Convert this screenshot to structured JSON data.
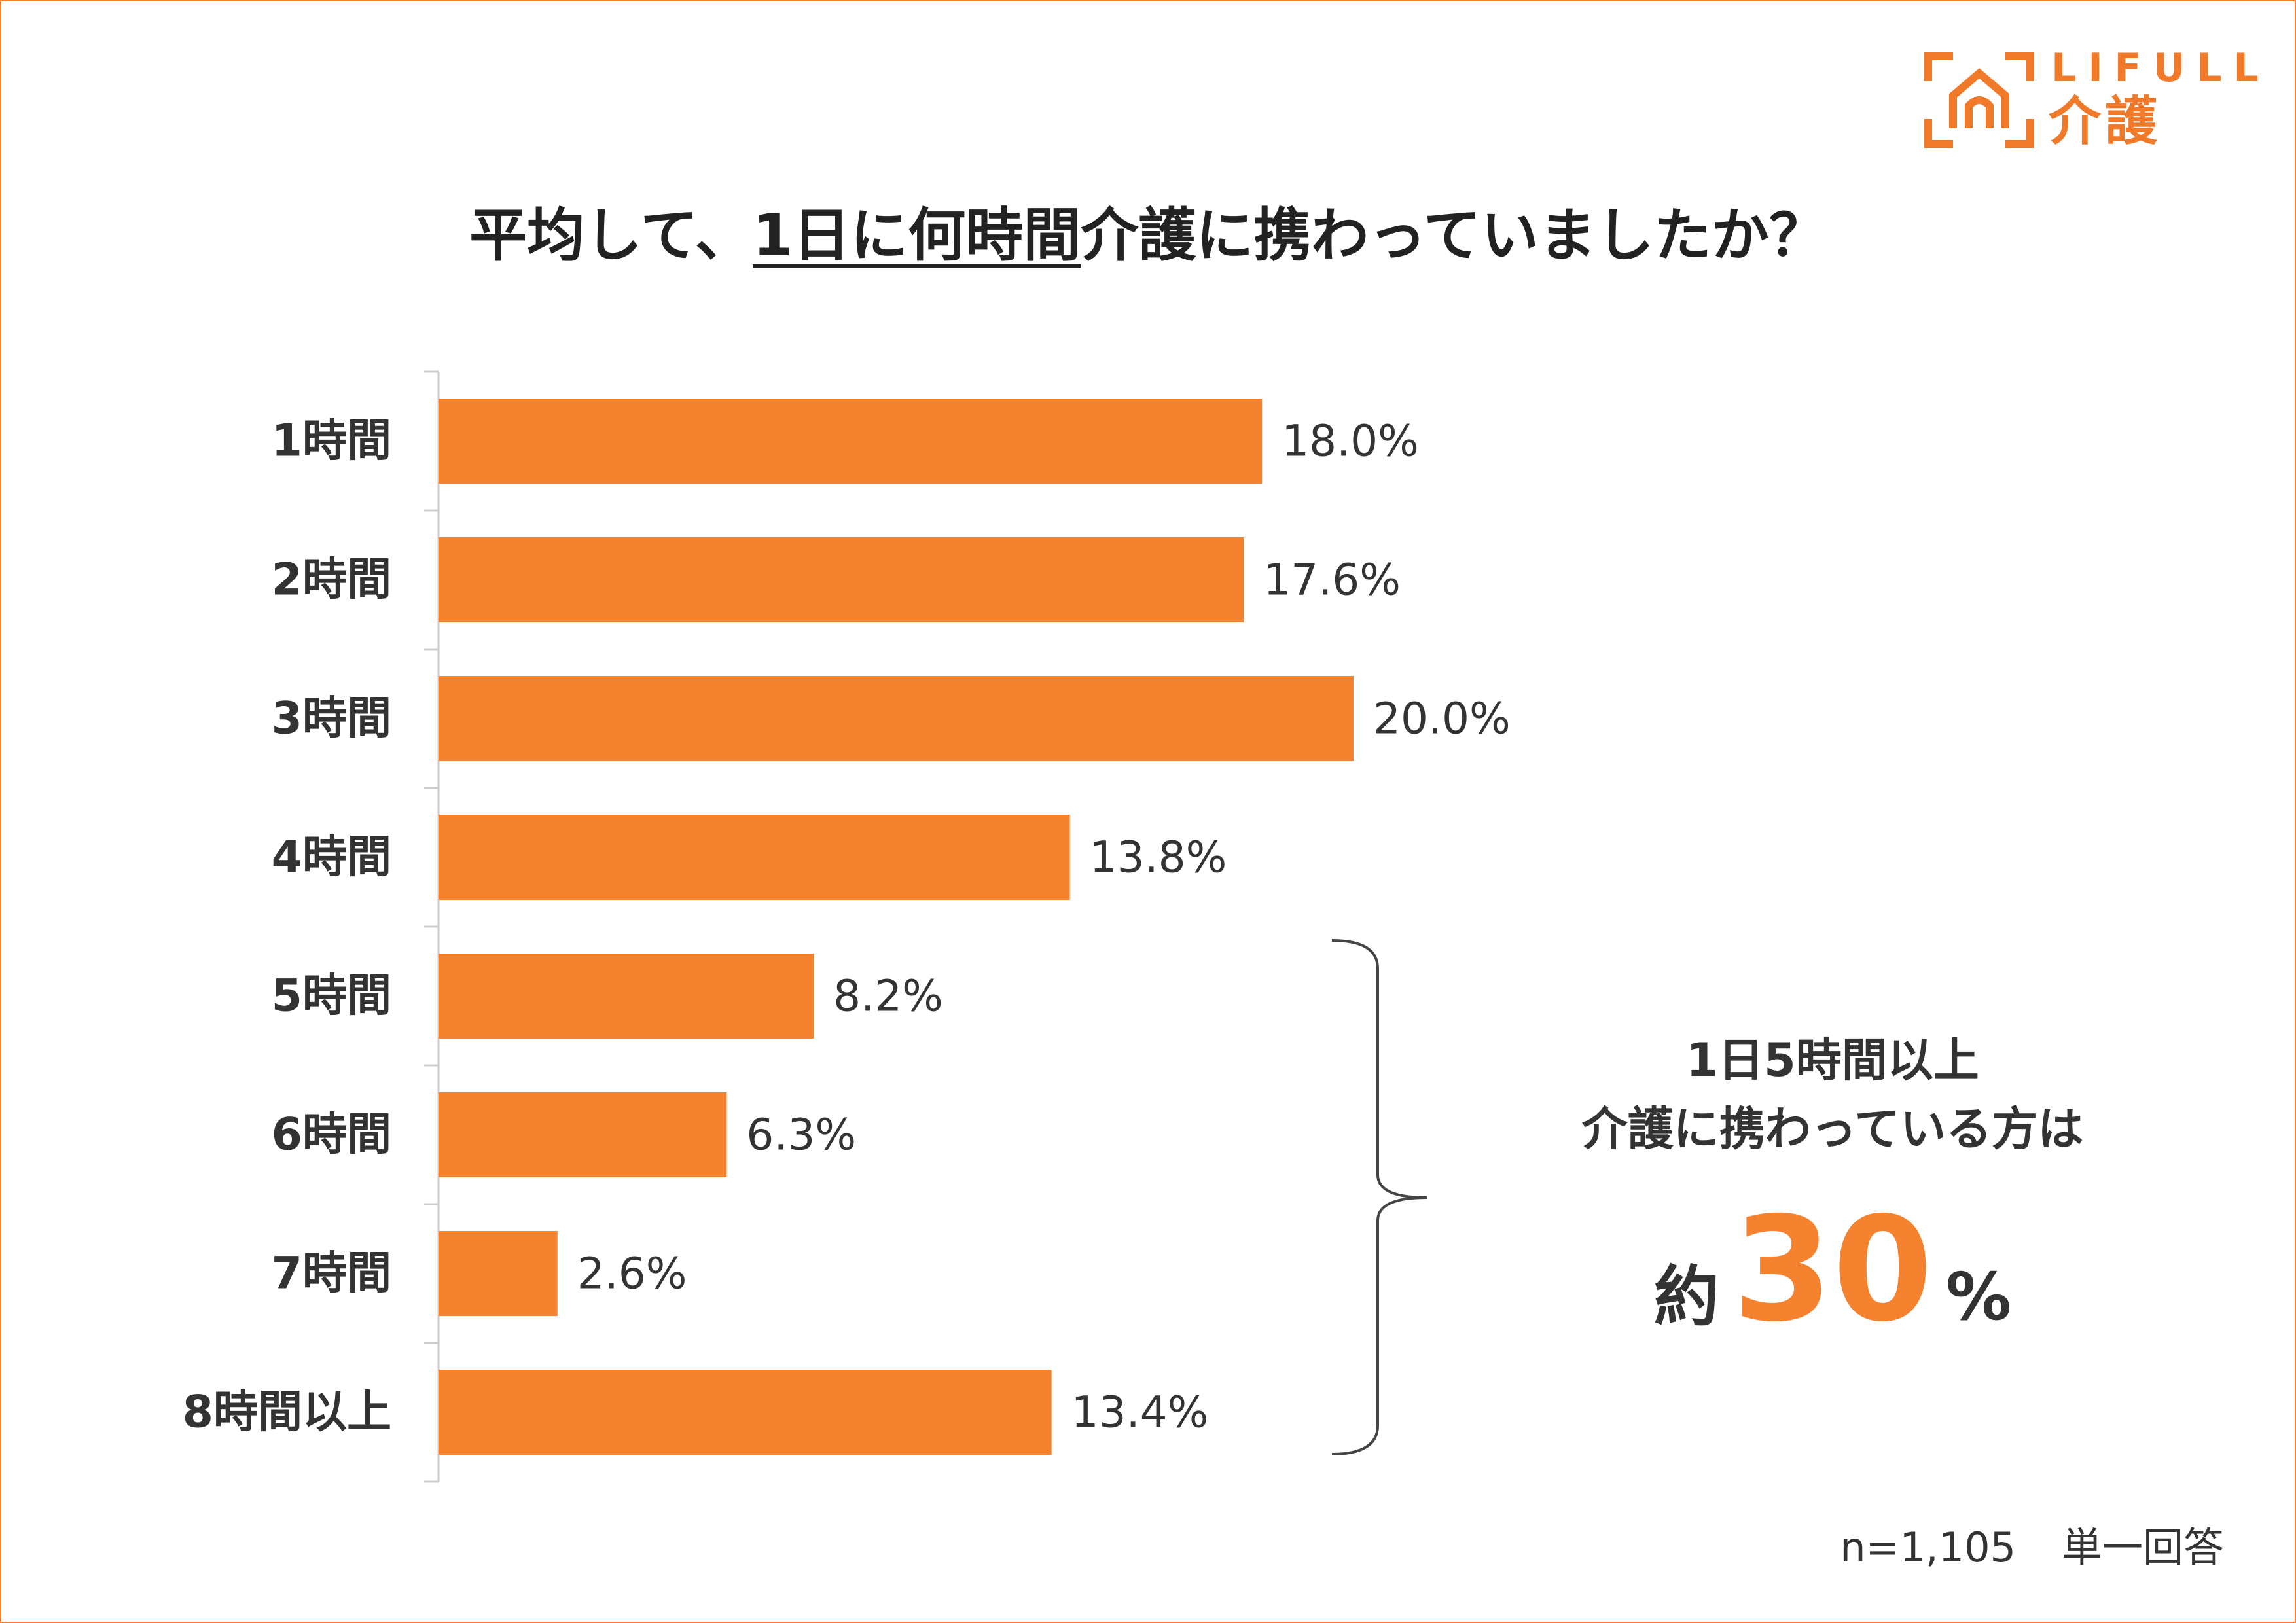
{
  "logo": {
    "line1": "LIFULL",
    "line2": "介護"
  },
  "title": {
    "before": "平均して、",
    "underlined": "1日に何時間",
    "after": "介護に携わっていましたか？"
  },
  "chart_data": {
    "type": "bar",
    "orientation": "horizontal",
    "title": "平均して、1日に何時間介護に携わっていましたか？",
    "categories": [
      "1時間",
      "2時間",
      "3時間",
      "4時間",
      "5時間",
      "6時間",
      "7時間",
      "8時間以上"
    ],
    "values": [
      18.0,
      17.6,
      20.0,
      13.8,
      8.2,
      6.3,
      2.6,
      13.4
    ],
    "value_labels": [
      "18.0%",
      "17.6%",
      "20.0%",
      "13.8%",
      "8.2%",
      "6.3%",
      "2.6%",
      "13.4%"
    ],
    "unit": "%",
    "xlim": [
      0,
      20.0
    ],
    "bar_color": "#f5822f",
    "xlabel": "",
    "ylabel": ""
  },
  "callout": {
    "line1": "1日5時間以上",
    "line2": "介護に携わっている方は",
    "prefix": "約",
    "number": "30",
    "suffix": "%"
  },
  "footnote": {
    "sample": "n=1,105",
    "type": "単一回答"
  },
  "colors": {
    "accent": "#f5822f",
    "frame": "#f08030",
    "text": "#333333"
  }
}
